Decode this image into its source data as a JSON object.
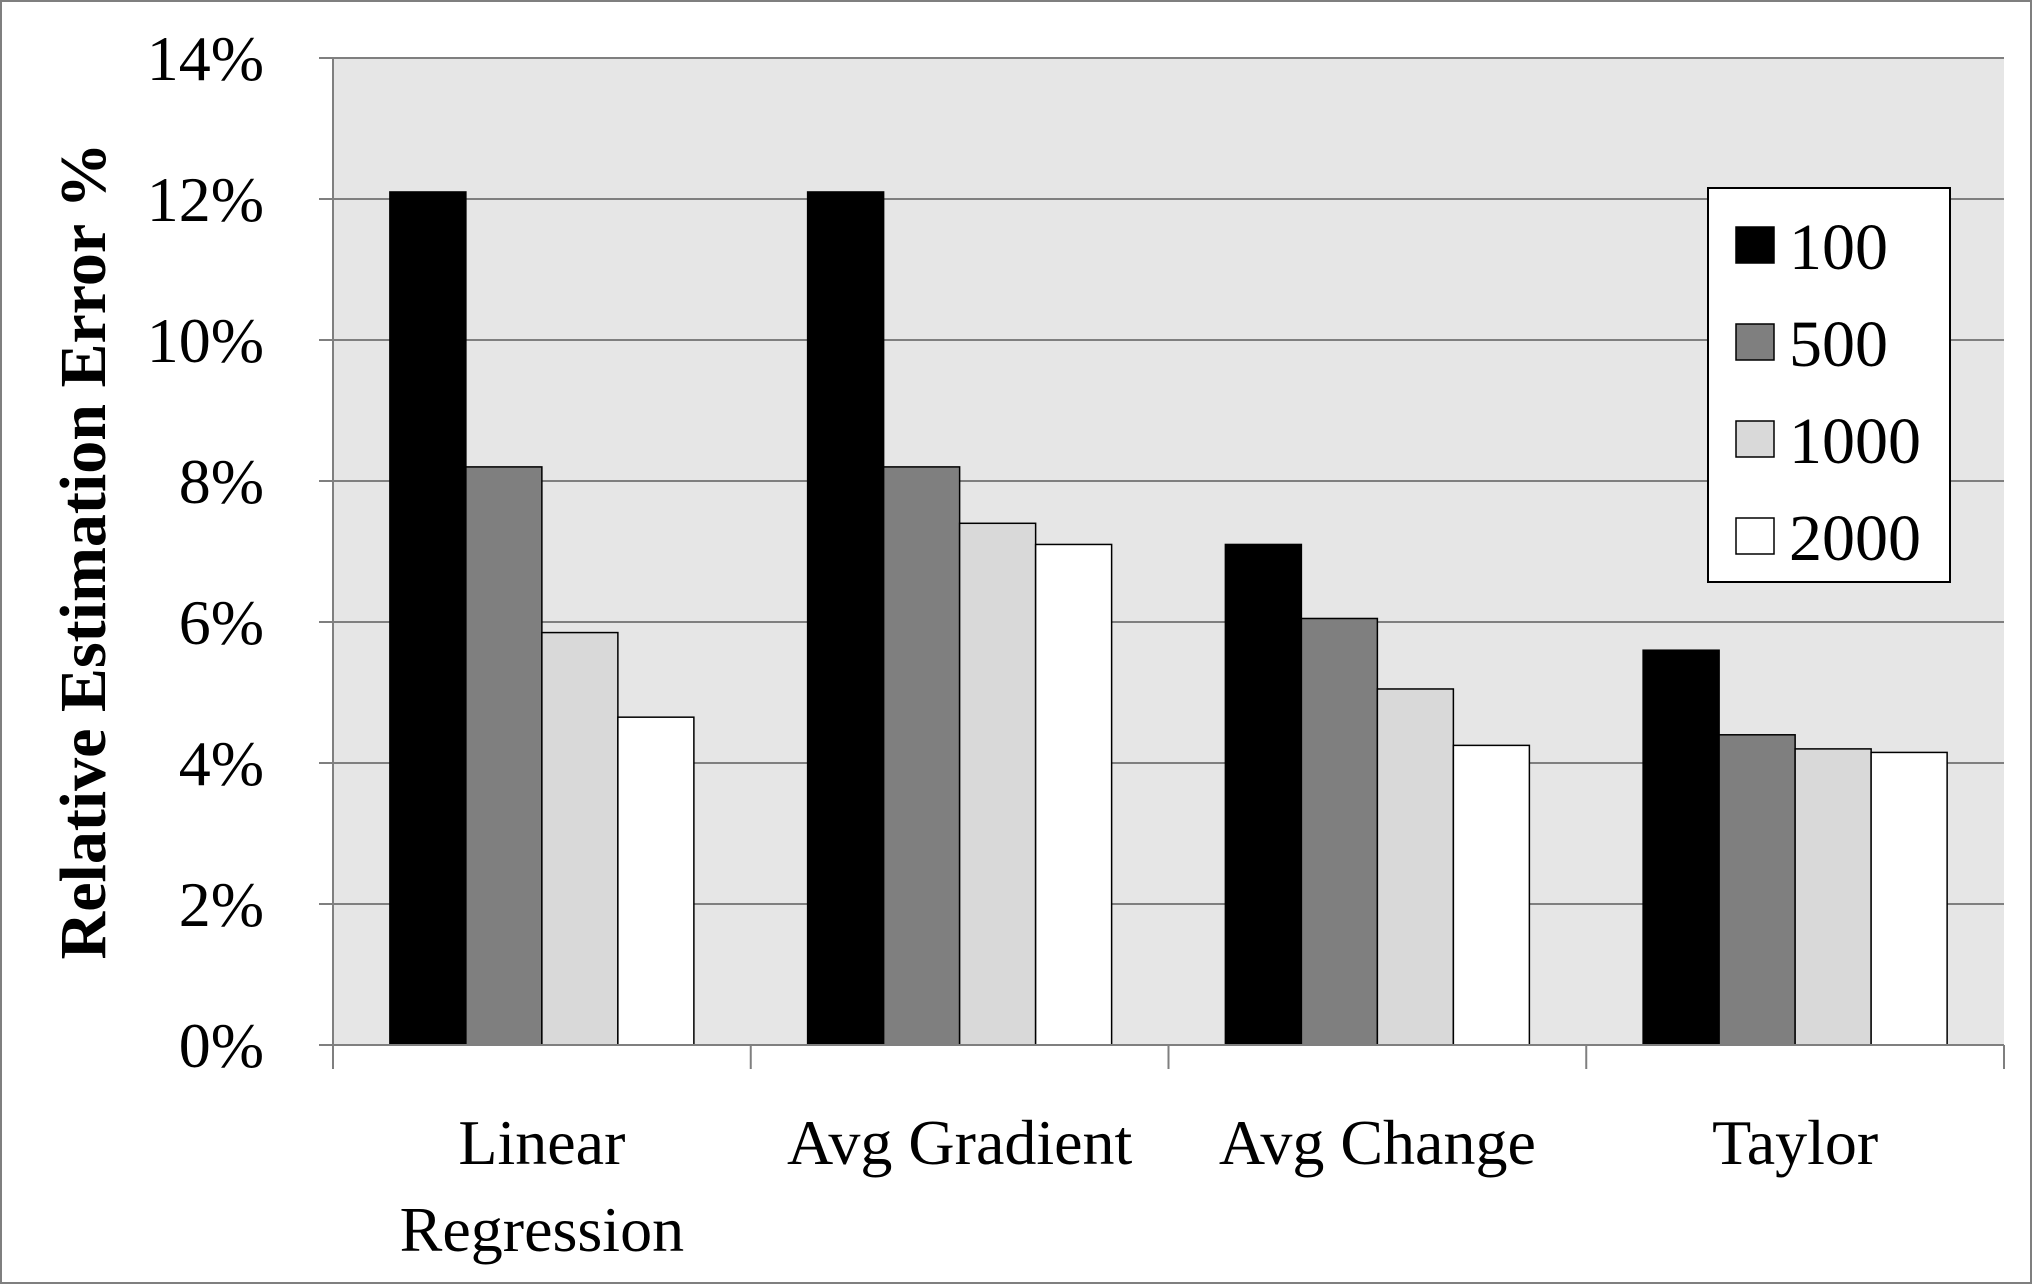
{
  "chart_data": {
    "type": "bar",
    "title": "",
    "xlabel": "",
    "ylabel": "Relative Estimation Error %",
    "ylim": [
      0,
      14
    ],
    "y_ticks": [
      "0%",
      "2%",
      "4%",
      "6%",
      "8%",
      "10%",
      "12%",
      "14%"
    ],
    "y_tick_values": [
      0,
      2,
      4,
      6,
      8,
      10,
      12,
      14
    ],
    "categories": [
      [
        "Linear",
        "Regression"
      ],
      [
        "Avg Gradient"
      ],
      [
        "Avg Change"
      ],
      [
        "Taylor"
      ]
    ],
    "series": [
      {
        "name": "100",
        "color": "#000000",
        "values": [
          12.1,
          12.1,
          7.1,
          5.6
        ]
      },
      {
        "name": "500",
        "color": "#7f7f7f",
        "values": [
          8.2,
          8.2,
          6.05,
          4.4
        ]
      },
      {
        "name": "1000",
        "color": "#d9d9d9",
        "values": [
          5.85,
          7.4,
          5.05,
          4.2
        ]
      },
      {
        "name": "2000",
        "color": "#ffffff",
        "values": [
          4.65,
          7.1,
          4.25,
          4.15
        ]
      }
    ],
    "grid": true,
    "plot_background": "#e6e6e6",
    "gridline_color": "#7f7f7f",
    "legend_position": "top-right"
  }
}
